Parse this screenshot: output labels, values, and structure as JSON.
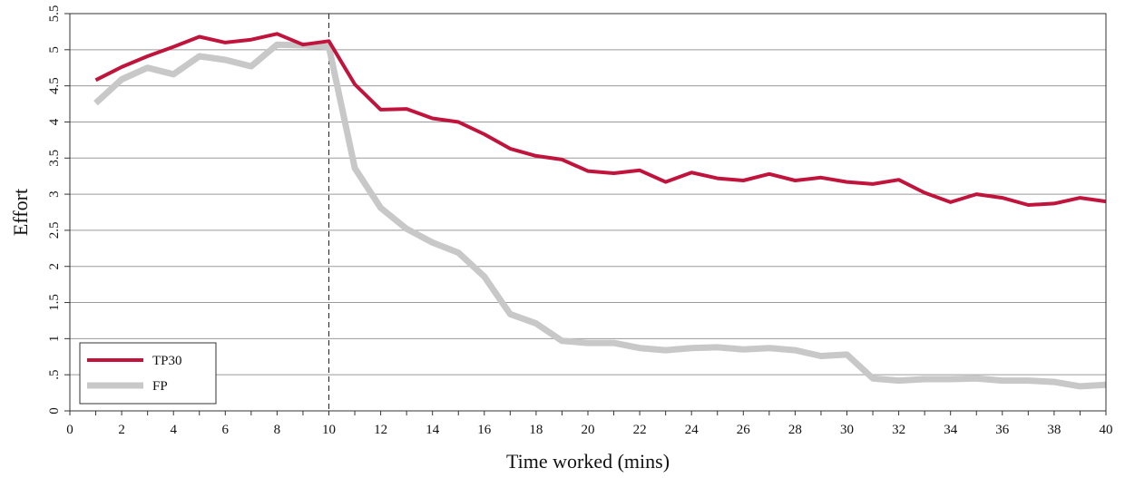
{
  "chart_data": {
    "type": "line",
    "title": "",
    "xlabel": "Time worked (mins)",
    "ylabel": "Effort",
    "xlim": [
      0,
      40
    ],
    "ylim": [
      0,
      5.5
    ],
    "x_ticks": [
      0,
      2,
      4,
      6,
      8,
      10,
      12,
      14,
      16,
      18,
      20,
      22,
      24,
      26,
      28,
      30,
      32,
      34,
      36,
      38,
      40
    ],
    "x_tick_labels": [
      "0",
      "2",
      "4",
      "6",
      "8",
      "10",
      "12",
      "14",
      "16",
      "18",
      "20",
      "22",
      "24",
      "26",
      "28",
      "30",
      "32",
      "34",
      "36",
      "38",
      "40"
    ],
    "y_ticks": [
      0,
      0.5,
      1,
      1.5,
      2,
      2.5,
      3,
      3.5,
      4,
      4.5,
      5,
      5.5
    ],
    "y_tick_labels": [
      "0",
      ".5",
      "1",
      "1.5",
      "2",
      "2.5",
      "3",
      "3.5",
      "4",
      "4.5",
      "5",
      "5.5"
    ],
    "grid": "horizontal",
    "legend_position": "bottom-left",
    "reference_line": {
      "x": 10,
      "style": "dashed"
    },
    "x": [
      1,
      2,
      3,
      4,
      5,
      6,
      7,
      8,
      9,
      10,
      11,
      12,
      13,
      14,
      15,
      16,
      17,
      18,
      19,
      20,
      21,
      22,
      23,
      24,
      25,
      26,
      27,
      28,
      29,
      30,
      31,
      32,
      33,
      34,
      35,
      36,
      37,
      38,
      39,
      40
    ],
    "series": [
      {
        "name": "TP30",
        "color": "#c0143c",
        "values": [
          4.58,
          4.76,
          4.91,
          5.04,
          5.18,
          5.1,
          5.14,
          5.22,
          5.07,
          5.12,
          4.52,
          4.17,
          4.18,
          4.05,
          4.0,
          3.83,
          3.63,
          3.53,
          3.48,
          3.32,
          3.29,
          3.33,
          3.17,
          3.3,
          3.22,
          3.19,
          3.28,
          3.19,
          3.23,
          3.17,
          3.14,
          3.2,
          3.02,
          2.89,
          3.0,
          2.95,
          2.85,
          2.87,
          2.95,
          2.9
        ]
      },
      {
        "name": "FP",
        "color": "#c8c8c8",
        "values": [
          4.26,
          4.59,
          4.75,
          4.66,
          4.91,
          4.86,
          4.77,
          5.07,
          5.06,
          5.04,
          3.36,
          2.81,
          2.52,
          2.33,
          2.19,
          1.86,
          1.34,
          1.21,
          0.97,
          0.94,
          0.94,
          0.87,
          0.84,
          0.87,
          0.88,
          0.85,
          0.87,
          0.84,
          0.76,
          0.78,
          0.45,
          0.42,
          0.44,
          0.44,
          0.45,
          0.42,
          0.42,
          0.4,
          0.34,
          0.36
        ]
      }
    ]
  }
}
